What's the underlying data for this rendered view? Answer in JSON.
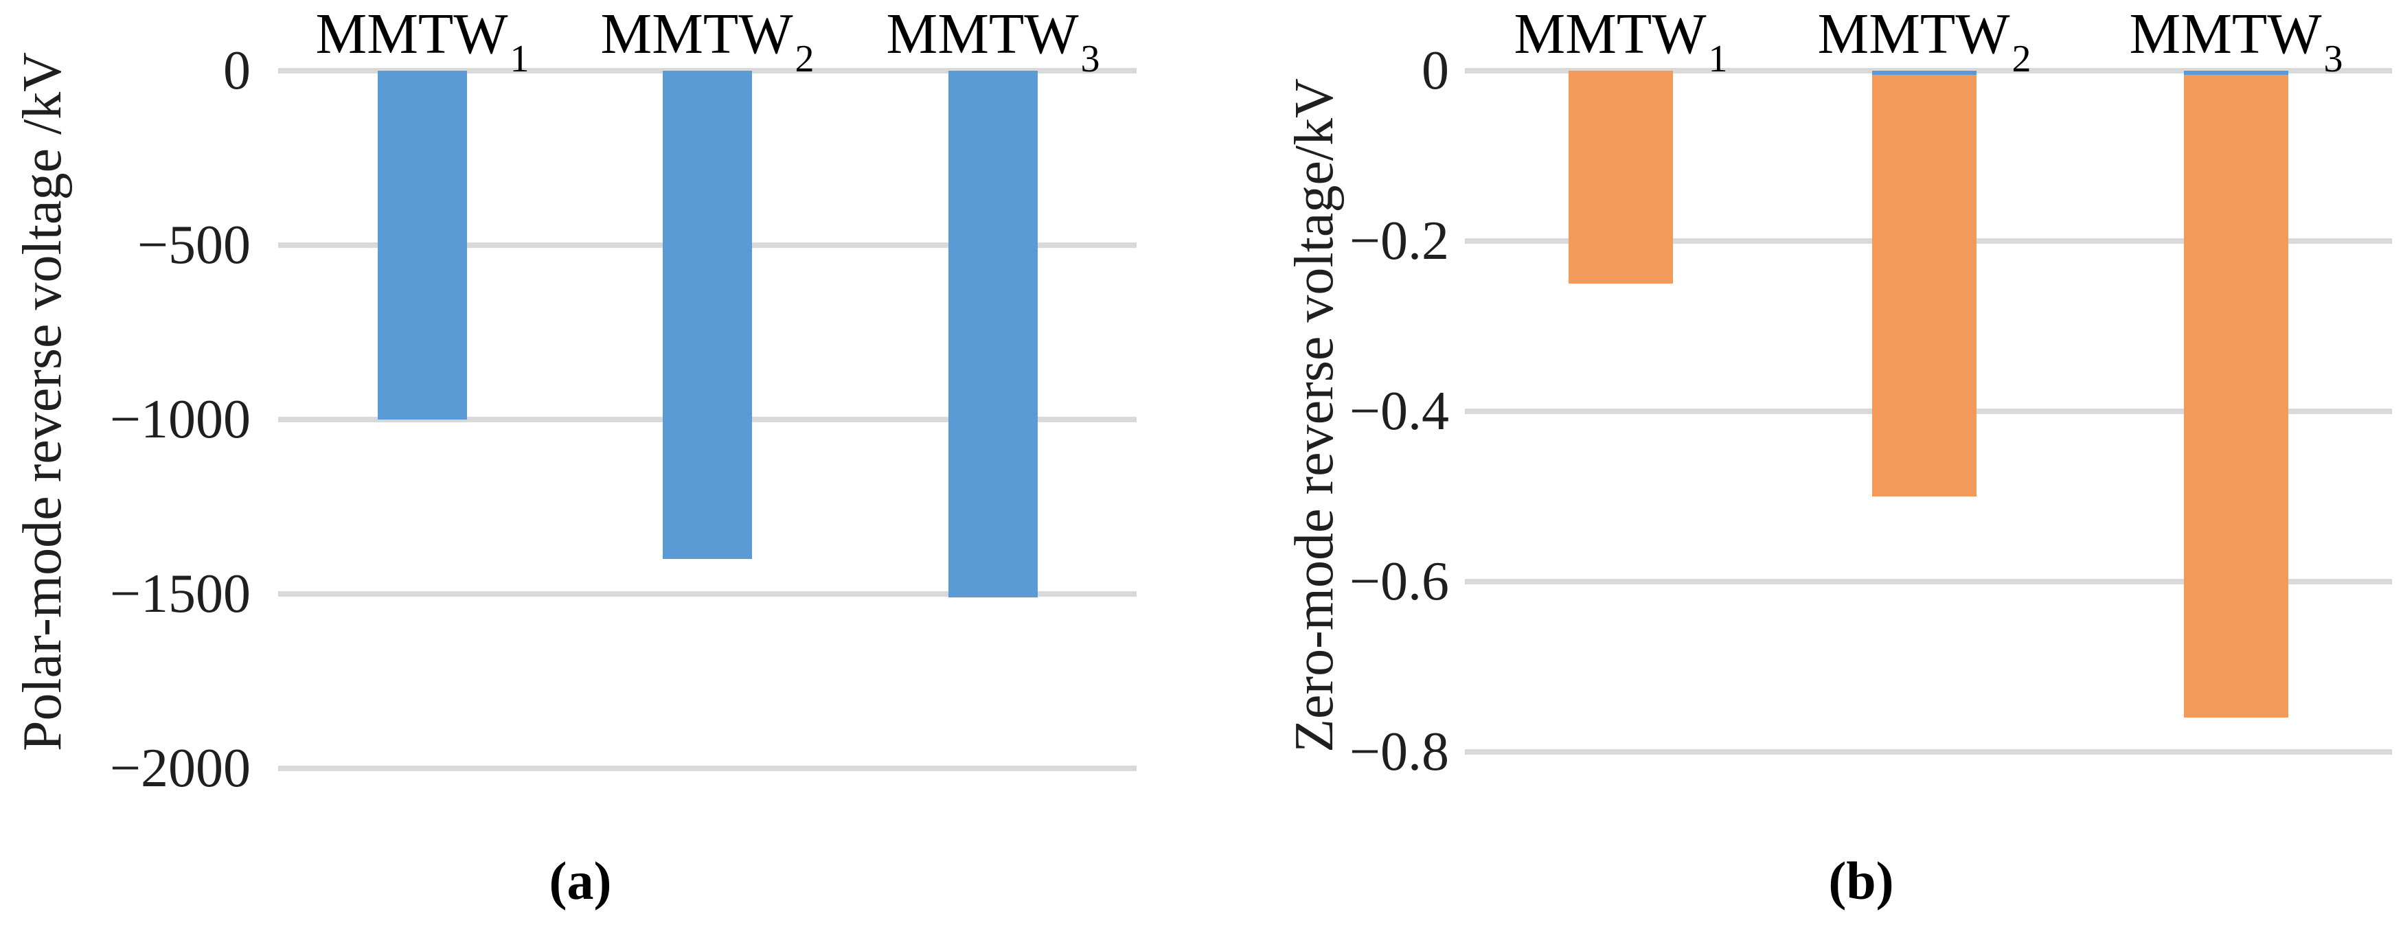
{
  "figure": {
    "background": "#ffffff",
    "panel_a_caption": "(a)",
    "panel_b_caption": "(b)"
  },
  "chart_data": [
    {
      "type": "bar",
      "caption": "(a)",
      "title": "",
      "xlabel": "",
      "ylabel": "Polar-mode reverse voltage /kV",
      "categories": [
        {
          "base": "MMTW",
          "sub": "1"
        },
        {
          "base": "MMTW",
          "sub": "2"
        },
        {
          "base": "MMTW",
          "sub": "3"
        }
      ],
      "values": [
        -1000,
        -1400,
        -1510
      ],
      "ylim": [
        0,
        -2000
      ],
      "yticks": [
        0,
        -500,
        -1000,
        -1500,
        -2000
      ],
      "ytick_labels": [
        "0",
        "−500",
        "−1000",
        "−1500",
        "−2000"
      ],
      "bar_color": "#5b9bd5",
      "grid_color": "#d9d9d9",
      "text_color": "#1f1f1f",
      "grid": true,
      "legend_position": "none",
      "cap_series": [
        false,
        false,
        false
      ],
      "cap_color": "#5b9bd5"
    },
    {
      "type": "bar",
      "caption": "(b)",
      "title": "",
      "xlabel": "",
      "ylabel": "Zero-mode reverse voltage/kV",
      "categories": [
        {
          "base": "MMTW",
          "sub": "1"
        },
        {
          "base": "MMTW",
          "sub": "2"
        },
        {
          "base": "MMTW",
          "sub": "3"
        }
      ],
      "values": [
        -0.25,
        -0.5,
        -0.76
      ],
      "ylim": [
        0,
        -0.8
      ],
      "yticks": [
        0,
        -0.2,
        -0.4,
        -0.6,
        -0.8
      ],
      "ytick_labels": [
        "0",
        "−0.2",
        "−0.4",
        "−0.6",
        "−0.8"
      ],
      "bar_color": "#f19a5b",
      "grid_color": "#d9d9d9",
      "text_color": "#1f1f1f",
      "grid": true,
      "legend_position": "none",
      "cap_series": [
        false,
        true,
        true
      ],
      "cap_color": "#5b9bd5"
    }
  ]
}
